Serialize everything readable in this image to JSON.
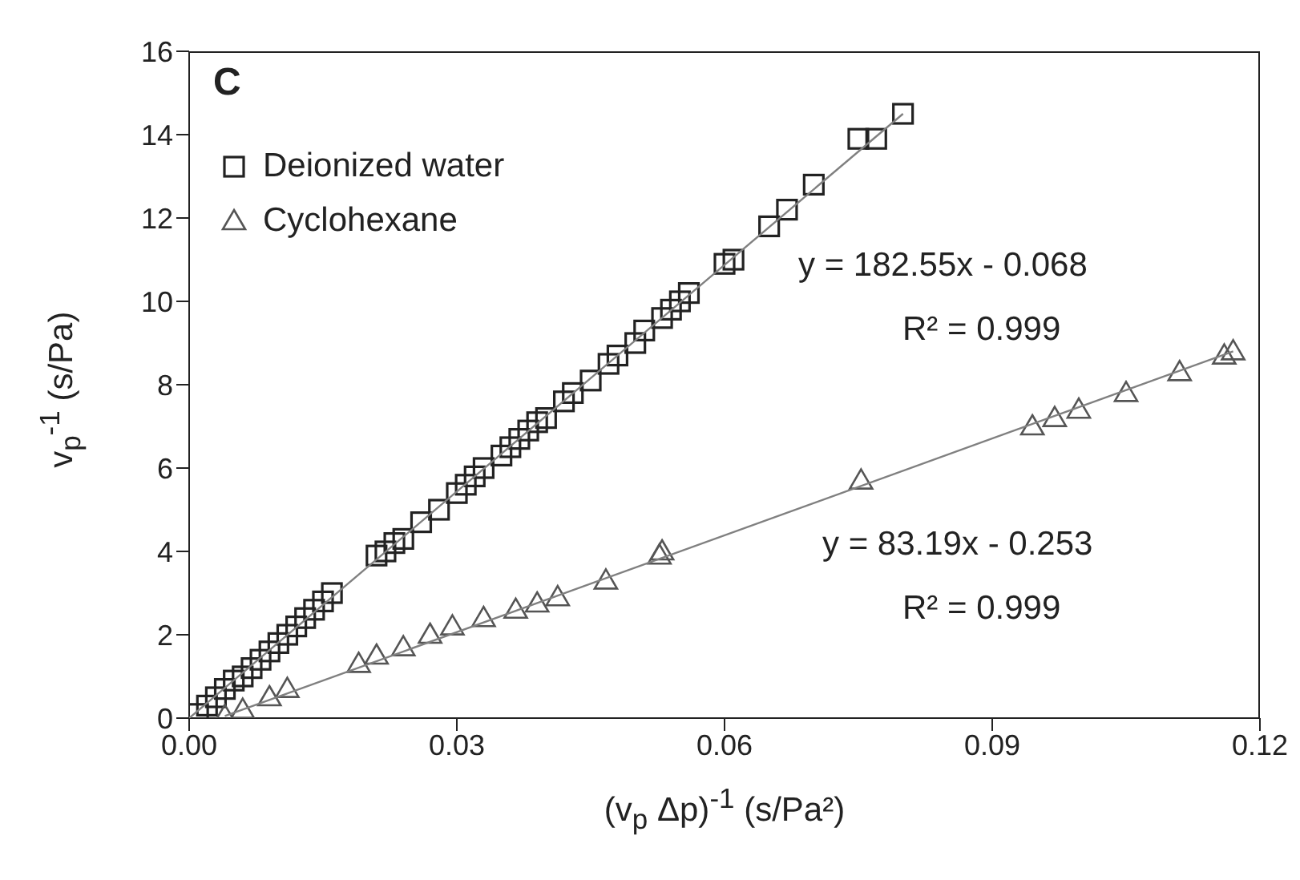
{
  "chart_data": {
    "type": "scatter",
    "xlabel": "(v$_{p}$ Δp)$^{-1}$ (s/Pa²)",
    "ylabel": "v$_{p}$$^{-1}$ (s/Pa)",
    "xlim": [
      0,
      0.12
    ],
    "xticks": [
      {
        "value": 0,
        "label": "0.00"
      },
      {
        "value": 0.03,
        "label": "0.03"
      },
      {
        "value": 0.06,
        "label": "0.06"
      },
      {
        "value": 0.09,
        "label": "0.09"
      },
      {
        "value": 0.12,
        "label": "0.12"
      }
    ],
    "ylim": [
      0,
      16
    ],
    "yticks": [
      0,
      2,
      4,
      6,
      8,
      10,
      12,
      14,
      16
    ],
    "grid": false,
    "legend": "top left",
    "annotations": [
      "C",
      "y = 182.55x - 0.068",
      "R² = 0.999",
      "y = 83.19x - 0.253",
      "R² = 0.999"
    ],
    "series": [
      {
        "name": "Deionized water",
        "marker": "square",
        "color": "#222222",
        "x": [
          0.001,
          0.002,
          0.003,
          0.004,
          0.005,
          0.006,
          0.007,
          0.008,
          0.009,
          0.01,
          0.011,
          0.012,
          0.013,
          0.014,
          0.015,
          0.016,
          0.021,
          0.022,
          0.023,
          0.024,
          0.026,
          0.028,
          0.03,
          0.031,
          0.032,
          0.033,
          0.035,
          0.036,
          0.037,
          0.038,
          0.039,
          0.04,
          0.042,
          0.043,
          0.045,
          0.047,
          0.048,
          0.05,
          0.051,
          0.053,
          0.054,
          0.055,
          0.056,
          0.06,
          0.061,
          0.065,
          0.067,
          0.07,
          0.075,
          0.077,
          0.08
        ],
        "values": [
          0.1,
          0.3,
          0.5,
          0.7,
          0.9,
          1.0,
          1.2,
          1.4,
          1.6,
          1.8,
          2.0,
          2.2,
          2.4,
          2.6,
          2.8,
          3.0,
          3.9,
          4.0,
          4.2,
          4.3,
          4.7,
          5.0,
          5.4,
          5.6,
          5.8,
          6.0,
          6.3,
          6.5,
          6.7,
          6.9,
          7.1,
          7.2,
          7.6,
          7.8,
          8.1,
          8.5,
          8.7,
          9.0,
          9.3,
          9.6,
          9.8,
          10.0,
          10.2,
          10.9,
          11.0,
          11.8,
          12.2,
          12.8,
          13.9,
          13.9,
          14.5
        ]
      },
      {
        "name": "Cyclohexane",
        "marker": "triangle",
        "color": "#555555",
        "x": [
          0.004,
          0.006,
          0.009,
          0.011,
          0.019,
          0.021,
          0.024,
          0.027,
          0.0295,
          0.033,
          0.0366,
          0.039,
          0.0413,
          0.0467,
          0.0527,
          0.053,
          0.0753,
          0.0945,
          0.097,
          0.0997,
          0.105,
          0.111,
          0.116,
          0.117
        ],
        "values": [
          0.05,
          0.2,
          0.5,
          0.7,
          1.3,
          1.5,
          1.7,
          2.0,
          2.2,
          2.4,
          2.6,
          2.75,
          2.9,
          3.3,
          3.9,
          4.0,
          5.7,
          7.0,
          7.2,
          7.4,
          7.8,
          8.3,
          8.7,
          8.8
        ]
      },
      {
        "type": "line",
        "marker": "none",
        "color": "#808080",
        "x": [
          0,
          0.08
        ],
        "values": [
          0,
          14.5
        ]
      },
      {
        "type": "line",
        "marker": "none",
        "color": "#808080",
        "x": [
          0.004,
          0.117
        ],
        "values": [
          0.05,
          8.8
        ]
      }
    ]
  }
}
